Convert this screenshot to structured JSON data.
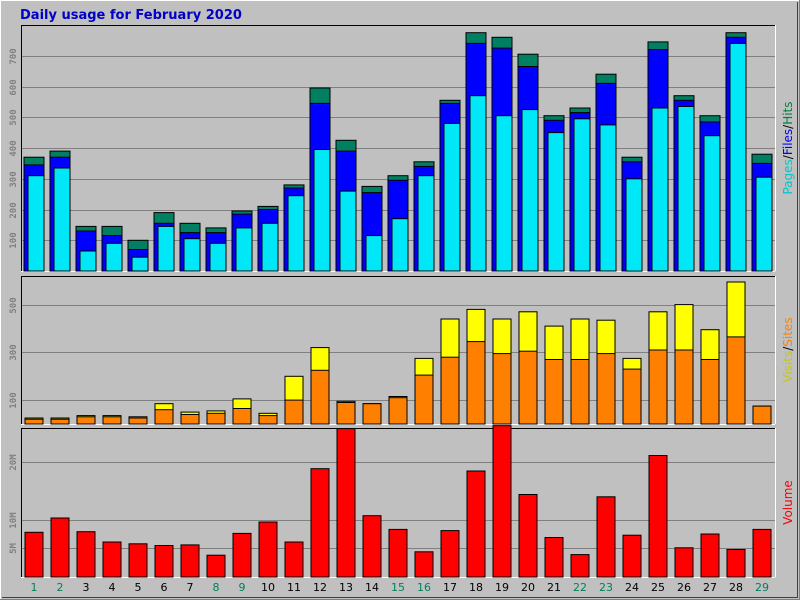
{
  "chart_data": {
    "type": "bar",
    "title": "Daily usage for February 2020",
    "categories": [
      "1",
      "2",
      "3",
      "4",
      "5",
      "6",
      "7",
      "8",
      "9",
      "10",
      "11",
      "12",
      "13",
      "14",
      "15",
      "16",
      "17",
      "18",
      "19",
      "20",
      "21",
      "22",
      "23",
      "24",
      "25",
      "26",
      "27",
      "28",
      "29"
    ],
    "weekend_days": [
      "1",
      "2",
      "8",
      "9",
      "15",
      "16",
      "22",
      "23",
      "29"
    ],
    "panels": [
      {
        "id": "hits",
        "ylim": [
          0,
          800
        ],
        "yticks": [
          "100",
          "200",
          "300",
          "400",
          "500",
          "600",
          "700"
        ],
        "ytick_values": [
          100,
          200,
          300,
          400,
          500,
          600,
          700
        ],
        "legend": [
          {
            "text": "Pages",
            "color": "#00c8c8"
          },
          {
            "text": "/",
            "color": "#000000"
          },
          {
            "text": "Files",
            "color": "#0000ff"
          },
          {
            "text": "/",
            "color": "#000000"
          },
          {
            "text": "Hits",
            "color": "#008040"
          }
        ],
        "series": [
          {
            "name": "Hits",
            "color": "#008060",
            "values": [
              370,
              390,
              145,
              145,
              100,
              190,
              155,
              140,
              195,
              210,
              280,
              595,
              425,
              275,
              310,
              355,
              555,
              775,
              760,
              705,
              505,
              530,
              640,
              370,
              745,
              570,
              505,
              775,
              380
            ]
          },
          {
            "name": "Files",
            "color": "#0000ff",
            "values": [
              345,
              370,
              130,
              115,
              70,
              155,
              125,
              125,
              185,
              200,
              270,
              545,
              390,
              255,
              295,
              340,
              545,
              740,
              725,
              665,
              490,
              515,
              610,
              355,
              720,
              555,
              485,
              760,
              350
            ]
          },
          {
            "name": "Pages",
            "color": "#00e8f8",
            "values": [
              310,
              335,
              65,
              90,
              45,
              145,
              105,
              90,
              140,
              155,
              245,
              395,
              260,
              115,
              170,
              310,
              480,
              570,
              505,
              525,
              450,
              495,
              475,
              300,
              530,
              535,
              440,
              740,
              305
            ]
          }
        ]
      },
      {
        "id": "visits",
        "ylim": [
          0,
          620
        ],
        "yticks": [
          "100",
          "300",
          "500"
        ],
        "ytick_values": [
          100,
          300,
          500
        ],
        "legend": [
          {
            "text": "Visits",
            "color": "#c8c800"
          },
          {
            "text": "/",
            "color": "#000000"
          },
          {
            "text": "Sites",
            "color": "#ff8000"
          }
        ],
        "series": [
          {
            "name": "Visits",
            "color": "#ffff00",
            "values": [
              25,
              25,
              35,
              35,
              30,
              85,
              50,
              55,
              105,
              45,
              200,
              320,
              95,
              85,
              115,
              275,
              440,
              480,
              440,
              470,
              410,
              440,
              435,
              275,
              470,
              500,
              395,
              595,
              75
            ]
          },
          {
            "name": "Sites",
            "color": "#ff8000",
            "values": [
              20,
              20,
              30,
              30,
              25,
              60,
              40,
              45,
              65,
              35,
              100,
              225,
              90,
              85,
              110,
              205,
              280,
              345,
              295,
              305,
              270,
              270,
              295,
              230,
              310,
              310,
              270,
              365,
              75
            ]
          }
        ]
      },
      {
        "id": "volume",
        "ylim": [
          0,
          26
        ],
        "yticks": [
          "5M",
          "10M",
          "20M"
        ],
        "ytick_values": [
          5,
          10,
          20
        ],
        "legend": [
          {
            "text": "Volume",
            "color": "#ff0000"
          }
        ],
        "series": [
          {
            "name": "Volume",
            "color": "#ff0000",
            "unit": "MB",
            "values": [
              7.8,
              10.3,
              7.9,
              6.1,
              5.8,
              5.5,
              5.6,
              3.8,
              7.6,
              9.6,
              6.1,
              18.9,
              25.9,
              10.7,
              8.3,
              4.4,
              8.1,
              18.5,
              26.4,
              14.4,
              6.9,
              3.9,
              14.0,
              7.3,
              21.2,
              5.1,
              7.5,
              4.8,
              8.3
            ]
          }
        ]
      }
    ]
  }
}
